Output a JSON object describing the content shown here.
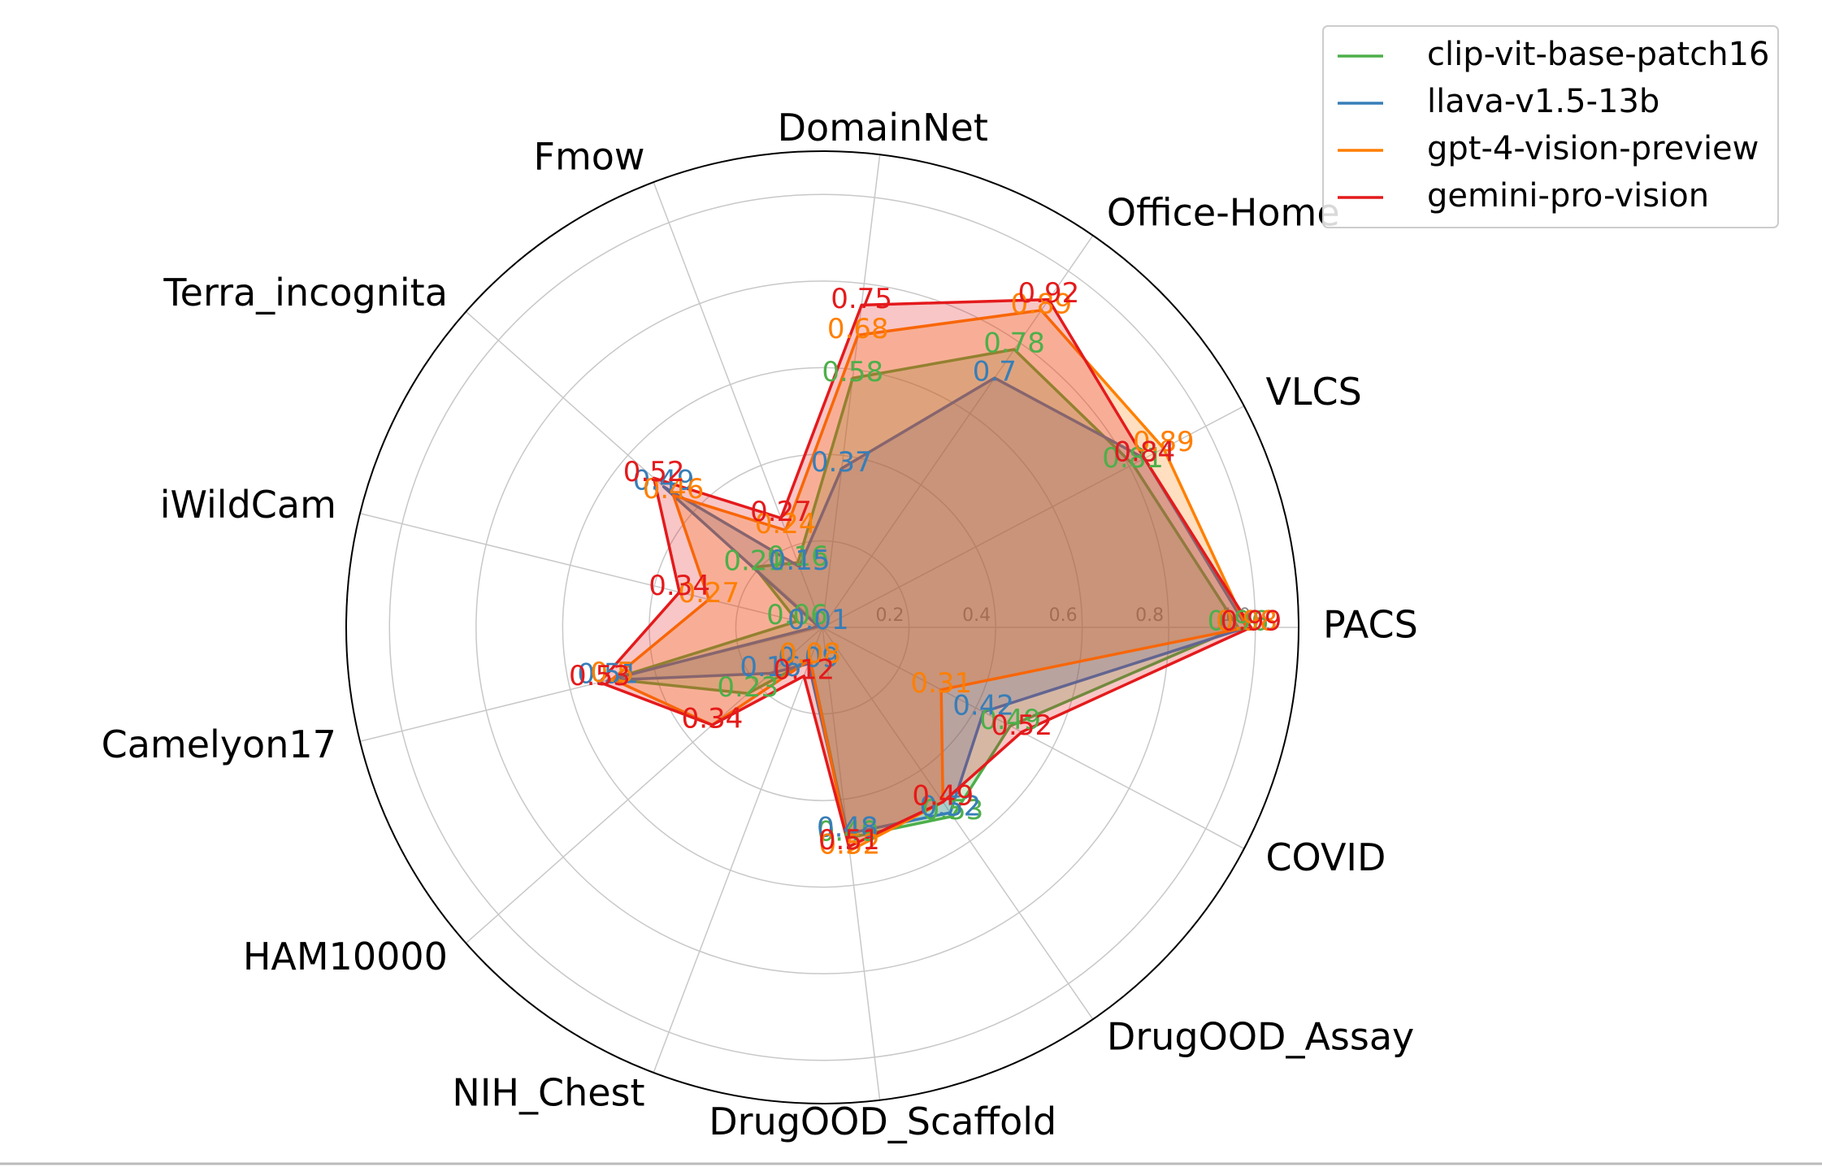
{
  "chart_data": {
    "type": "radar",
    "categories": [
      "PACS",
      "VLCS",
      "Office-Home",
      "DomainNet",
      "Fmow",
      "Terra_incognita",
      "iWildCam",
      "Camelyon17",
      "HAM10000",
      "NIH_Chest",
      "DrugOOD_Scaffold",
      "DrugOOD_Assay",
      "COVID"
    ],
    "series": [
      {
        "name": "clip-vit-base-patch16",
        "color": "#4daf4a",
        "values": [
          0.96,
          0.81,
          0.78,
          0.58,
          0.16,
          0.21,
          0.06,
          0.5,
          0.23,
          0.08,
          0.49,
          0.53,
          0.49
        ]
      },
      {
        "name": "llava-v1.5-13b",
        "color": "#377eb8",
        "values": [
          0.98,
          0.84,
          0.7,
          0.37,
          0.15,
          0.49,
          0.01,
          0.51,
          0.16,
          0.09,
          0.48,
          0.52,
          0.42
        ]
      },
      {
        "name": "gpt-4-vision-preview",
        "color": "#ff7f00",
        "values": [
          0.98,
          0.89,
          0.89,
          0.68,
          0.24,
          0.46,
          0.27,
          0.5,
          0.34,
          0.08,
          0.52,
          0.49,
          0.31
        ]
      },
      {
        "name": "gemini-pro-vision",
        "color": "#e41a1c",
        "values": [
          0.99,
          0.84,
          0.92,
          0.75,
          0.27,
          0.52,
          0.34,
          0.53,
          0.34,
          0.12,
          0.51,
          0.49,
          0.52
        ]
      }
    ],
    "ylim": [
      0,
      1.1
    ],
    "yticks": [
      0.2,
      0.4,
      {
        "value": 0.6,
        "label": "0.6"
      },
      {
        "value": 0.8,
        "label": "0.8"
      },
      {
        "value": 1.0,
        "label": "1.0"
      }
    ],
    "grid": true,
    "legend": "upper right"
  }
}
